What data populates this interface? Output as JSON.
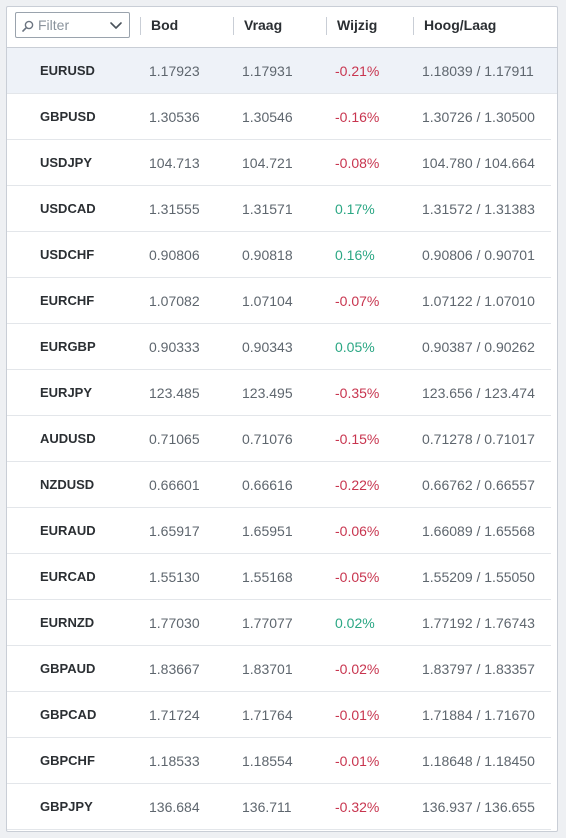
{
  "filter": {
    "placeholder": "Filter"
  },
  "columns": {
    "bod": "Bod",
    "vraag": "Vraag",
    "wijzig": "Wijzig",
    "hooglaag": "Hoog/Laag"
  },
  "colors": {
    "negative": "#c8354f",
    "positive": "#2ba784",
    "selected_row": "#eef2f8"
  },
  "selected_index": 0,
  "rows": [
    {
      "symbol": "EURUSD",
      "bod": "1.17923",
      "vraag": "1.17931",
      "wijzig": "-0.21%",
      "dir": "neg",
      "hooglaag": "1.18039 / 1.17911"
    },
    {
      "symbol": "GBPUSD",
      "bod": "1.30536",
      "vraag": "1.30546",
      "wijzig": "-0.16%",
      "dir": "neg",
      "hooglaag": "1.30726 / 1.30500"
    },
    {
      "symbol": "USDJPY",
      "bod": "104.713",
      "vraag": "104.721",
      "wijzig": "-0.08%",
      "dir": "neg",
      "hooglaag": "104.780 / 104.664"
    },
    {
      "symbol": "USDCAD",
      "bod": "1.31555",
      "vraag": "1.31571",
      "wijzig": "0.17%",
      "dir": "pos",
      "hooglaag": "1.31572 / 1.31383"
    },
    {
      "symbol": "USDCHF",
      "bod": "0.90806",
      "vraag": "0.90818",
      "wijzig": "0.16%",
      "dir": "pos",
      "hooglaag": "0.90806 / 0.90701"
    },
    {
      "symbol": "EURCHF",
      "bod": "1.07082",
      "vraag": "1.07104",
      "wijzig": "-0.07%",
      "dir": "neg",
      "hooglaag": "1.07122 / 1.07010"
    },
    {
      "symbol": "EURGBP",
      "bod": "0.90333",
      "vraag": "0.90343",
      "wijzig": "0.05%",
      "dir": "pos",
      "hooglaag": "0.90387 / 0.90262"
    },
    {
      "symbol": "EURJPY",
      "bod": "123.485",
      "vraag": "123.495",
      "wijzig": "-0.35%",
      "dir": "neg",
      "hooglaag": "123.656 / 123.474"
    },
    {
      "symbol": "AUDUSD",
      "bod": "0.71065",
      "vraag": "0.71076",
      "wijzig": "-0.15%",
      "dir": "neg",
      "hooglaag": "0.71278 / 0.71017"
    },
    {
      "symbol": "NZDUSD",
      "bod": "0.66601",
      "vraag": "0.66616",
      "wijzig": "-0.22%",
      "dir": "neg",
      "hooglaag": "0.66762 / 0.66557"
    },
    {
      "symbol": "EURAUD",
      "bod": "1.65917",
      "vraag": "1.65951",
      "wijzig": "-0.06%",
      "dir": "neg",
      "hooglaag": "1.66089 / 1.65568"
    },
    {
      "symbol": "EURCAD",
      "bod": "1.55130",
      "vraag": "1.55168",
      "wijzig": "-0.05%",
      "dir": "neg",
      "hooglaag": "1.55209 / 1.55050"
    },
    {
      "symbol": "EURNZD",
      "bod": "1.77030",
      "vraag": "1.77077",
      "wijzig": "0.02%",
      "dir": "pos",
      "hooglaag": "1.77192 / 1.76743"
    },
    {
      "symbol": "GBPAUD",
      "bod": "1.83667",
      "vraag": "1.83701",
      "wijzig": "-0.02%",
      "dir": "neg",
      "hooglaag": "1.83797 / 1.83357"
    },
    {
      "symbol": "GBPCAD",
      "bod": "1.71724",
      "vraag": "1.71764",
      "wijzig": "-0.01%",
      "dir": "neg",
      "hooglaag": "1.71884 / 1.71670"
    },
    {
      "symbol": "GBPCHF",
      "bod": "1.18533",
      "vraag": "1.18554",
      "wijzig": "-0.01%",
      "dir": "neg",
      "hooglaag": "1.18648 / 1.18450"
    },
    {
      "symbol": "GBPJPY",
      "bod": "136.684",
      "vraag": "136.711",
      "wijzig": "-0.32%",
      "dir": "neg",
      "hooglaag": "136.937 / 136.655"
    }
  ]
}
